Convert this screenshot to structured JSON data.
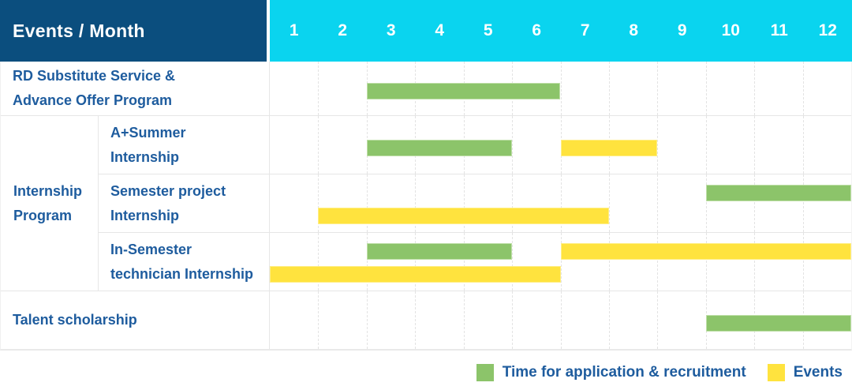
{
  "header": {
    "title": "Events / Month"
  },
  "colors": {
    "header_bg": "#0b4e7e",
    "month_header_bg": "#0ad4ef",
    "label_text": "#1e5c9e",
    "recruitment_green": "#8cc46a",
    "events_yellow": "#ffe33e"
  },
  "legend": {
    "items": [
      {
        "series": "recruitment",
        "label": "Time for application & recruitment"
      },
      {
        "series": "events",
        "label": "Events"
      }
    ]
  },
  "chart_data": {
    "type": "gantt",
    "title": "Events / Month",
    "x_axis": {
      "label": "Month",
      "ticks": [
        "1",
        "2",
        "3",
        "4",
        "5",
        "6",
        "7",
        "8",
        "9",
        "10",
        "11",
        "12"
      ],
      "range": [
        1,
        12
      ]
    },
    "legend_position": "bottom-right",
    "series": [
      {
        "id": "recruitment",
        "name": "Time for application & recruitment",
        "color": "#8cc46a",
        "border_color": "#bfdfa8"
      },
      {
        "id": "events",
        "name": "Events",
        "color": "#ffe33e",
        "border_color": "#ffee85"
      }
    ],
    "rows": [
      {
        "group": "",
        "label_lines": [
          "RD Substitute Service &",
          "Advance Offer Program"
        ],
        "bars": [
          {
            "series": "recruitment",
            "start_month": 3,
            "end_month": 6,
            "lane": 0
          }
        ]
      },
      {
        "group": "Internship Program",
        "label_lines": [
          "A+Summer",
          "Internship"
        ],
        "bars": [
          {
            "series": "recruitment",
            "start_month": 3,
            "end_month": 5,
            "lane": 0
          },
          {
            "series": "events",
            "start_month": 7,
            "end_month": 8,
            "lane": 0
          }
        ]
      },
      {
        "group": "Internship Program",
        "label_lines": [
          "Semester project",
          "Internship"
        ],
        "bars": [
          {
            "series": "recruitment",
            "start_month": 10,
            "end_month": 12,
            "lane": 0
          },
          {
            "series": "events",
            "start_month": 2,
            "end_month": 7,
            "lane": 1
          }
        ]
      },
      {
        "group": "Internship Program",
        "label_lines": [
          "In-Semester",
          "technician Internship"
        ],
        "bars": [
          {
            "series": "recruitment",
            "start_month": 3,
            "end_month": 5,
            "lane": 0
          },
          {
            "series": "events",
            "start_month": 7,
            "end_month": 12,
            "lane": 0
          },
          {
            "series": "events",
            "start_month": 1,
            "end_month": 6,
            "lane": 1
          }
        ]
      },
      {
        "group": "",
        "label_lines": [
          "Talent scholarship"
        ],
        "bars": [
          {
            "series": "recruitment",
            "start_month": 10,
            "end_month": 12,
            "lane": 0
          }
        ]
      }
    ]
  }
}
